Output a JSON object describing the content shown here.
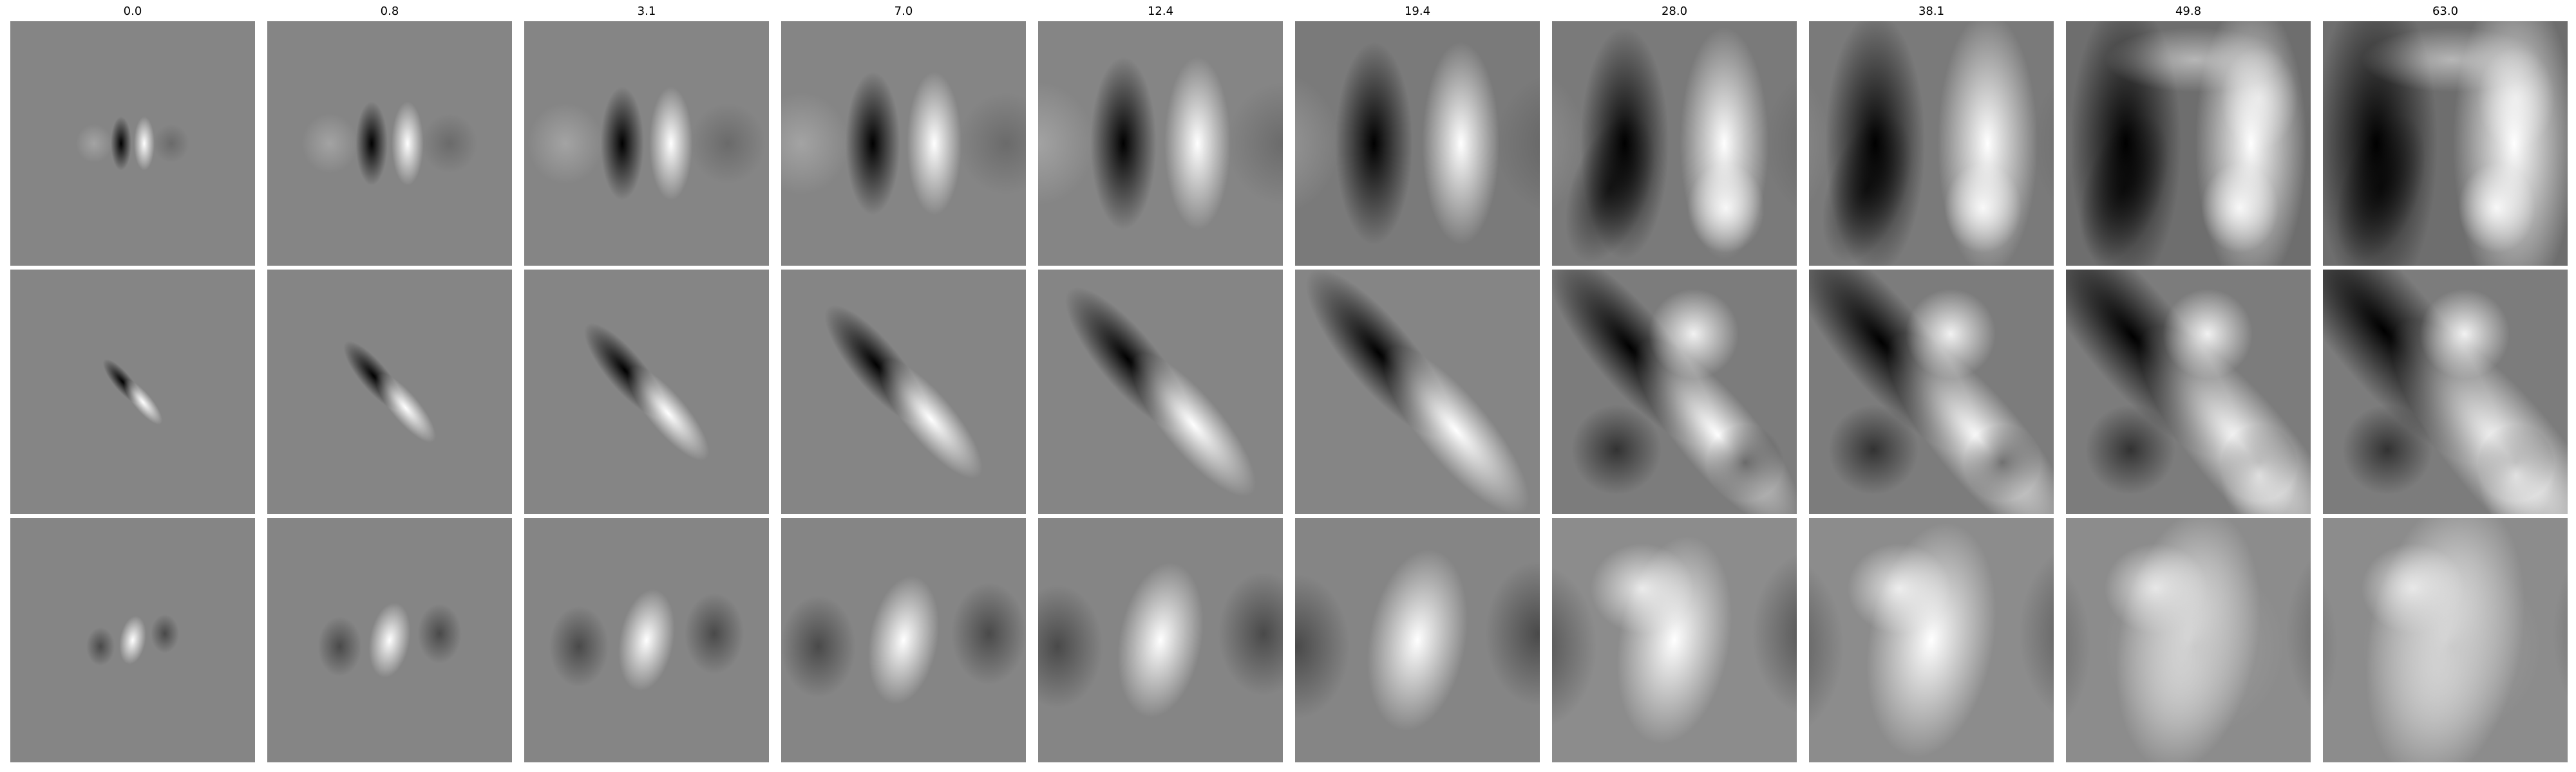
{
  "figure": {
    "column_titles": [
      "0.0",
      "0.8",
      "3.1",
      "7.0",
      "12.4",
      "19.4",
      "28.0",
      "38.1",
      "49.8",
      "63.0"
    ],
    "row_count": 3,
    "colors": {
      "background": "#ffffff",
      "neutral_gray": "#808080",
      "dark": "#000000",
      "light": "#ffffff"
    }
  }
}
